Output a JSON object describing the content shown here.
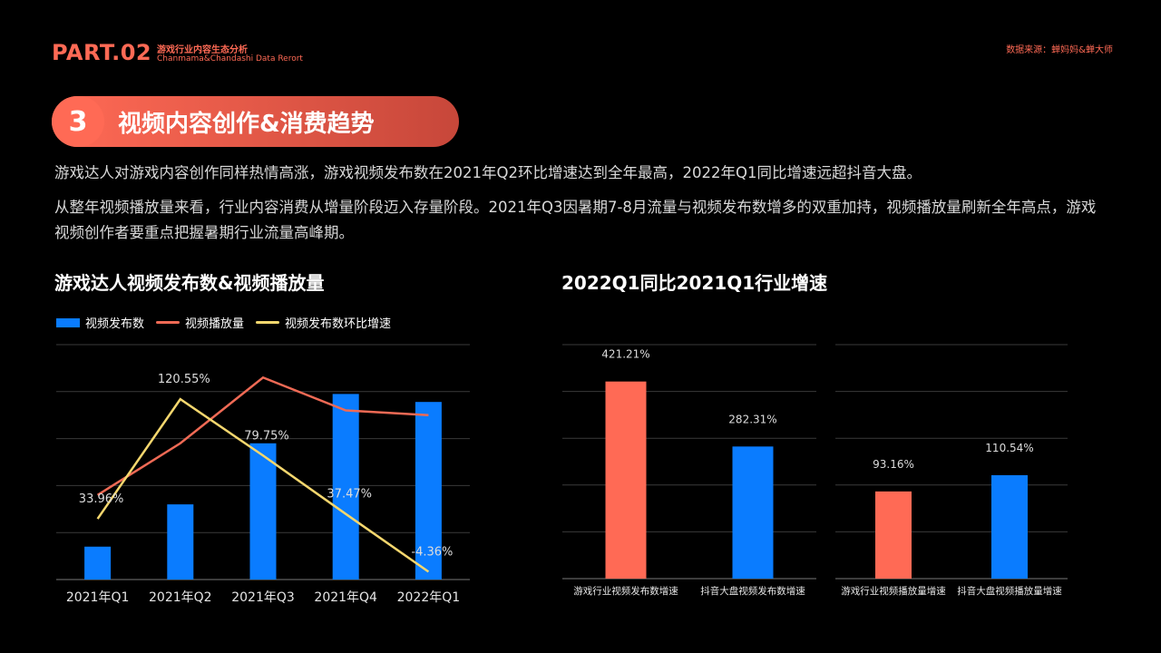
{
  "header": {
    "part": "PART.02",
    "subtitle_cn": "游戏行业内容生态分析",
    "subtitle_en": "Chanmama&Chandashi Data Rerort",
    "source": "数据来源：蝉妈妈&蝉大师"
  },
  "section": {
    "number": "3",
    "title": "视频内容创作&消费趋势"
  },
  "paragraphs": [
    "游戏达人对游戏内容创作同样热情高涨，游戏视频发布数在2021年Q2环比增速达到全年最高，2022年Q1同比增速远超抖音大盘。",
    "从整年视频播放量来看，行业内容消费从增量阶段迈入存量阶段。2021年Q3因暑期7-8月流量与视频发布数增多的双重加持，视频播放量刷新全年高点，游戏视频创作者要重点把握暑期行业流量高峰期。"
  ],
  "colors": {
    "accent": "#ff6a55",
    "blue": "#0a7cff",
    "red_line": "#ef6a55",
    "yellow_line": "#f5d76e",
    "grid": "#3a3a3a"
  },
  "chart_data": [
    {
      "type": "bar",
      "title": "游戏达人视频发布数&视频播放量",
      "categories": [
        "2021年Q1",
        "2021年Q2",
        "2021年Q3",
        "2021年Q4",
        "2022年Q1"
      ],
      "legend": [
        "视频发布数",
        "视频播放量",
        "视频发布数环比增速"
      ],
      "series": [
        {
          "name": "视频发布数",
          "kind": "bar",
          "values": [
            0.7,
            1.6,
            2.9,
            3.95,
            3.78
          ]
        },
        {
          "name": "视频播放量",
          "kind": "line",
          "values": [
            1.8,
            2.9,
            4.3,
            3.6,
            3.5
          ]
        },
        {
          "name": "视频发布数环比增速",
          "kind": "line",
          "values": [
            33.96,
            120.55,
            79.75,
            37.47,
            -4.36
          ],
          "labels": [
            "33.96%",
            "120.55%",
            "79.75%",
            "37.47%",
            "-4.36%"
          ]
        }
      ],
      "ylim": [
        0,
        5
      ],
      "grid": true
    },
    {
      "type": "bar",
      "title": "2022Q1同比2021Q1行业增速",
      "panels": [
        {
          "categories": [
            "游戏行业视频发布数增速",
            "抖音大盘视频发布数增速"
          ],
          "values": [
            421.21,
            282.31
          ],
          "labels": [
            "421.21%",
            "282.31%"
          ],
          "ylim": [
            0,
            500
          ]
        },
        {
          "categories": [
            "游戏行业视频播放量增速",
            "抖音大盘视频播放量增速"
          ],
          "values": [
            93.16,
            110.54
          ],
          "labels": [
            "93.16%",
            "110.54%"
          ],
          "ylim": [
            0,
            250
          ]
        }
      ],
      "grid": true
    }
  ]
}
